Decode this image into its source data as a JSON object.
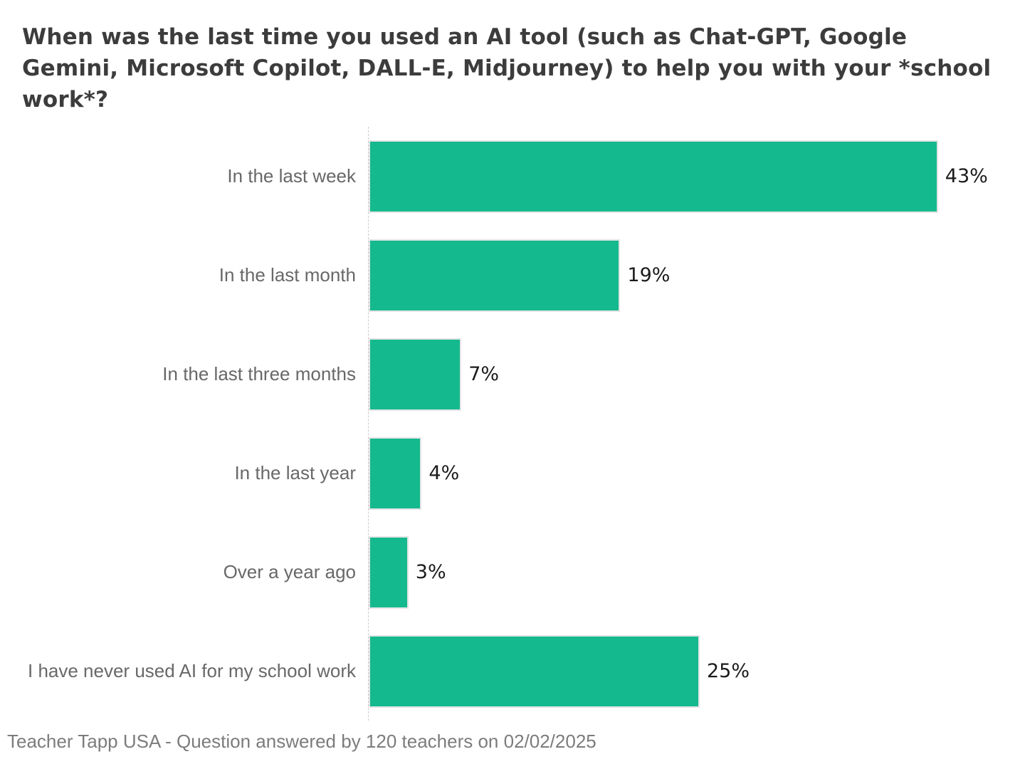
{
  "page": {
    "background": "#ffffff"
  },
  "chart_data": {
    "type": "bar",
    "orientation": "horizontal",
    "title": "When was the last time you used an AI tool (such as Chat-GPT, Google Gemini, Microsoft Copilot, DALL-E, Midjourney) to help you with your *school work*?",
    "categories": [
      "In the last week",
      "In the last month",
      "In the last three months",
      "In the last year",
      "Over a year ago",
      "I have never used AI for my school work"
    ],
    "values": [
      43,
      19,
      7,
      4,
      3,
      25
    ],
    "value_labels": [
      "43%",
      "19%",
      "7%",
      "4%",
      "3%",
      "25%"
    ],
    "xlabel": "",
    "ylabel": "",
    "xlim": [
      0,
      50
    ],
    "grid": false,
    "legend": null,
    "bar_color": "#14b98e",
    "source": "Teacher Tapp USA - Question answered by 120 teachers on 02/02/2025"
  },
  "colors": {
    "title": "#3c3c3c",
    "category_label": "#686868",
    "value_label": "#1b1b1b",
    "source": "#7c7c7c",
    "axis_line": "#cccccc",
    "bar_edge": "#e4e4e4"
  }
}
